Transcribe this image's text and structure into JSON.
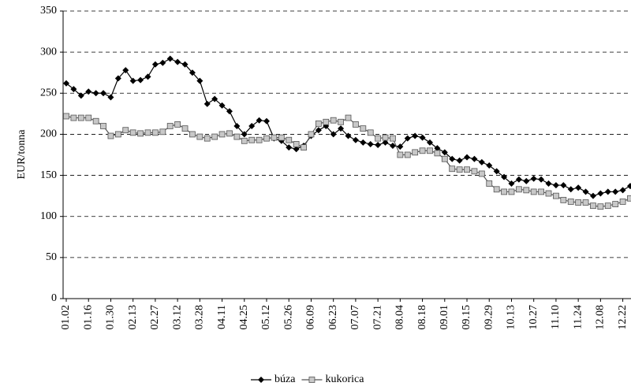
{
  "chart_data": {
    "type": "line",
    "y_label": "EUR/tonna",
    "categories": [
      "01.02",
      null,
      null,
      "01.16",
      null,
      null,
      "01.30",
      null,
      null,
      "02.13",
      null,
      null,
      "02.27",
      null,
      null,
      "03.12",
      null,
      null,
      "03.28",
      null,
      null,
      "04.11",
      null,
      null,
      "04.25",
      null,
      null,
      "05.12",
      null,
      null,
      "05.26",
      null,
      null,
      "06.09",
      null,
      null,
      "06.23",
      null,
      null,
      "07.07",
      null,
      null,
      "07.21",
      null,
      null,
      "08.04",
      null,
      null,
      "08.18",
      null,
      null,
      "09.01",
      null,
      null,
      "09.15",
      null,
      null,
      "09.29",
      null,
      null,
      "10.13",
      null,
      null,
      "10.27",
      null,
      null,
      "11.10",
      null,
      null,
      "11.24",
      null,
      null,
      "12.08",
      null,
      null,
      "12.22",
      null
    ],
    "series": [
      {
        "name": "búza",
        "color": "#000000",
        "marker": "diamond",
        "values": [
          262,
          255,
          247,
          252,
          250,
          250,
          245,
          268,
          278,
          265,
          266,
          270,
          285,
          287,
          292,
          288,
          285,
          275,
          265,
          237,
          243,
          235,
          228,
          210,
          200,
          210,
          217,
          216,
          195,
          192,
          184,
          182,
          186,
          198,
          205,
          210,
          200,
          207,
          198,
          193,
          190,
          188,
          187,
          190,
          186,
          185,
          195,
          198,
          196,
          190,
          183,
          178,
          170,
          168,
          172,
          170,
          166,
          162,
          155,
          148,
          140,
          145,
          143,
          146,
          145,
          140,
          138,
          138,
          133,
          135,
          130,
          125,
          128,
          130,
          130,
          132,
          137
        ]
      },
      {
        "name": "kukorica",
        "color": "#555555",
        "marker": "square",
        "values": [
          222,
          220,
          220,
          220,
          216,
          210,
          198,
          200,
          205,
          202,
          201,
          202,
          202,
          203,
          210,
          212,
          207,
          200,
          197,
          195,
          197,
          200,
          201,
          197,
          192,
          193,
          193,
          195,
          196,
          196,
          193,
          188,
          184,
          200,
          213,
          215,
          217,
          215,
          220,
          212,
          207,
          202,
          195,
          196,
          195,
          175,
          175,
          178,
          180,
          180,
          177,
          170,
          158,
          157,
          157,
          155,
          152,
          140,
          133,
          130,
          130,
          133,
          132,
          130,
          130,
          128,
          125,
          120,
          118,
          117,
          117,
          113,
          112,
          113,
          115,
          118,
          122
        ]
      }
    ],
    "ylim": [
      0,
      350
    ],
    "yticks": [
      0,
      50,
      100,
      150,
      200,
      250,
      300,
      350
    ],
    "grid": true,
    "legend": "bottom"
  }
}
